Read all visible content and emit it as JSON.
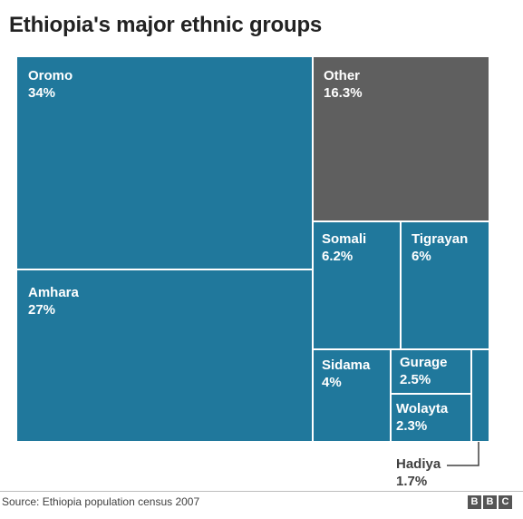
{
  "title": "Ethiopia's major ethnic groups",
  "source": "Source: Ethiopia population census 2007",
  "logo": [
    "B",
    "B",
    "C"
  ],
  "colors": {
    "group": "#20789c",
    "other": "#5f5f5f",
    "separator": "#ffffff"
  },
  "chart_data": {
    "type": "treemap",
    "title": "Ethiopia's major ethnic groups",
    "unit": "%",
    "items": [
      {
        "name": "Oromo",
        "value": 34,
        "label": "34%"
      },
      {
        "name": "Amhara",
        "value": 27,
        "label": "27%"
      },
      {
        "name": "Other",
        "value": 16.3,
        "label": "16.3%"
      },
      {
        "name": "Somali",
        "value": 6.2,
        "label": "6.2%"
      },
      {
        "name": "Tigrayan",
        "value": 6,
        "label": "6%"
      },
      {
        "name": "Sidama",
        "value": 4,
        "label": "4%"
      },
      {
        "name": "Gurage",
        "value": 2.5,
        "label": "2.5%"
      },
      {
        "name": "Wolayta",
        "value": 2.3,
        "label": "2.3%"
      },
      {
        "name": "Hadiya",
        "value": 1.7,
        "label": "1.7%"
      }
    ]
  }
}
